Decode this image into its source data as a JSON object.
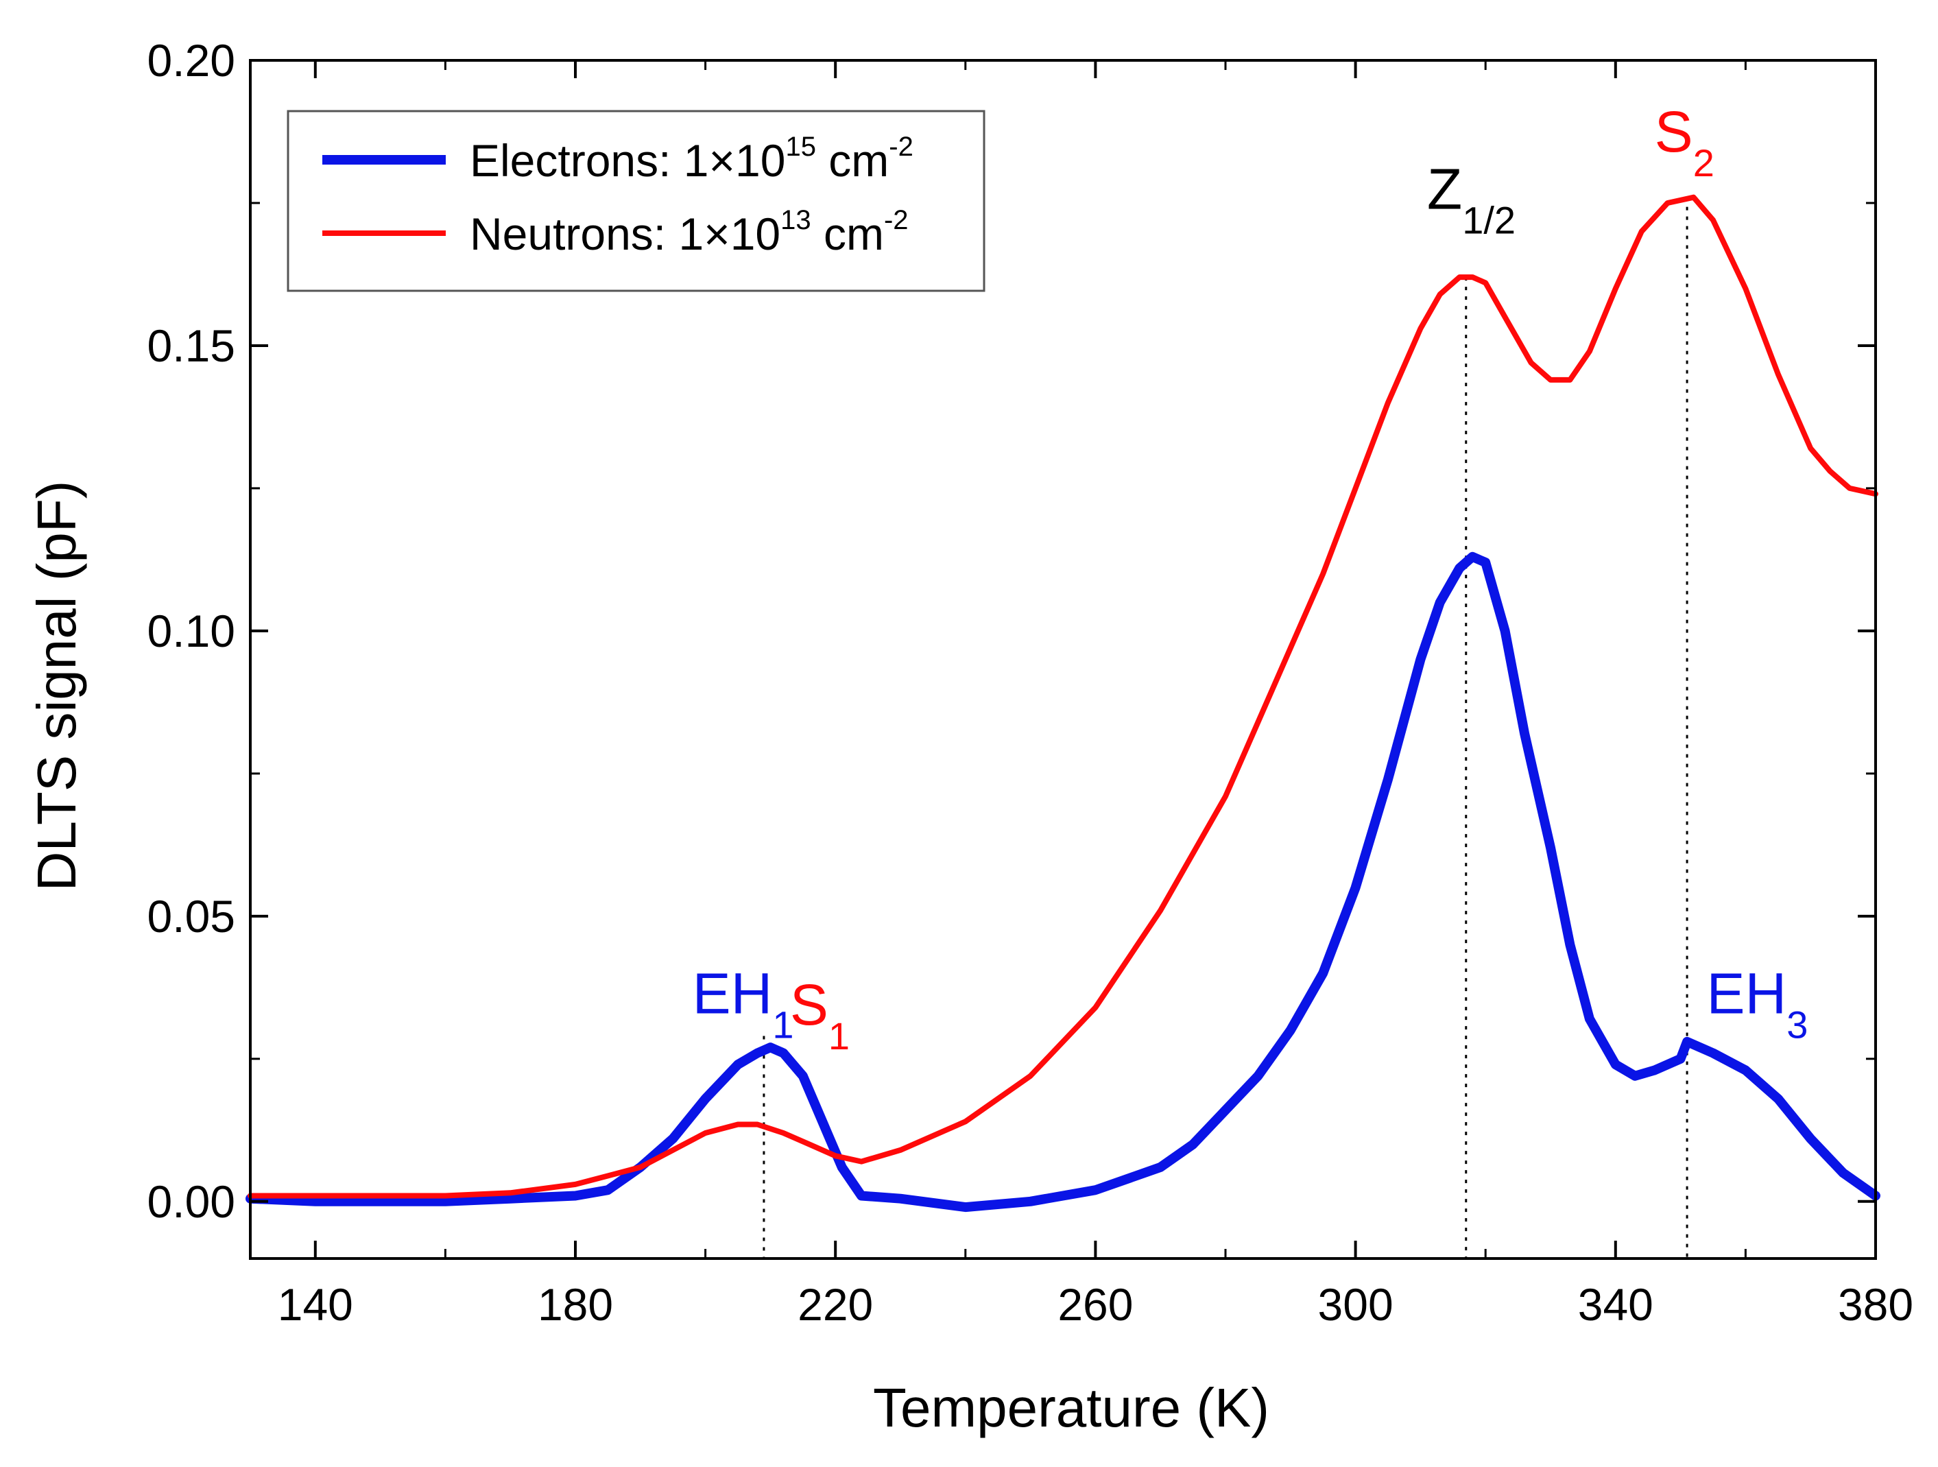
{
  "chart_data": {
    "type": "line",
    "title": "",
    "xlabel": "Temperature (K)",
    "ylabel": "DLTS signal (pF)",
    "xlim": [
      130,
      380
    ],
    "ylim": [
      -0.01,
      0.2
    ],
    "xticks": [
      140,
      180,
      220,
      260,
      300,
      340,
      380
    ],
    "xtick_labels": [
      "140",
      "180",
      "220",
      "260",
      "300",
      "340",
      "380"
    ],
    "yticks": [
      0.0,
      0.05,
      0.1,
      0.15,
      0.2
    ],
    "ytick_labels": [
      "0.00",
      "0.05",
      "0.10",
      "0.15",
      "0.20"
    ],
    "legend_position": "top-left",
    "series": [
      {
        "name": "Electrons",
        "legend_text": "Electrons: 1×10",
        "legend_exp": "15",
        "legend_unit": " cm",
        "legend_unit_exp": "-2",
        "color": "#0a14e6",
        "x": [
          130,
          140,
          150,
          160,
          170,
          180,
          185,
          190,
          195,
          200,
          205,
          208,
          210,
          212,
          215,
          218,
          221,
          224,
          230,
          240,
          250,
          260,
          270,
          275,
          280,
          285,
          290,
          295,
          300,
          305,
          310,
          313,
          316,
          318,
          320,
          323,
          326,
          330,
          333,
          336,
          340,
          343,
          346,
          350,
          351,
          355,
          360,
          365,
          370,
          375,
          380
        ],
        "y": [
          0.0005,
          0.0,
          0.0,
          0.0,
          0.0005,
          0.001,
          0.002,
          0.006,
          0.011,
          0.018,
          0.024,
          0.026,
          0.027,
          0.026,
          0.022,
          0.014,
          0.006,
          0.001,
          0.0005,
          -0.001,
          0.0,
          0.002,
          0.006,
          0.01,
          0.016,
          0.022,
          0.03,
          0.04,
          0.055,
          0.074,
          0.095,
          0.105,
          0.111,
          0.113,
          0.112,
          0.1,
          0.082,
          0.062,
          0.045,
          0.032,
          0.024,
          0.022,
          0.023,
          0.025,
          0.028,
          0.026,
          0.023,
          0.018,
          0.011,
          0.005,
          0.001
        ]
      },
      {
        "name": "Neutrons",
        "legend_text": "Neutrons: 1×10",
        "legend_exp": "13",
        "legend_unit": " cm",
        "legend_unit_exp": "-2",
        "color": "#ff0a0a",
        "x": [
          130,
          140,
          150,
          160,
          170,
          180,
          190,
          195,
          200,
          205,
          208,
          212,
          216,
          220,
          224,
          230,
          240,
          250,
          260,
          270,
          280,
          290,
          295,
          300,
          305,
          310,
          313,
          316,
          318,
          320,
          323,
          327,
          330,
          333,
          336,
          340,
          344,
          348,
          352,
          355,
          360,
          365,
          370,
          373,
          376,
          380
        ],
        "y": [
          0.001,
          0.001,
          0.001,
          0.001,
          0.0015,
          0.003,
          0.006,
          0.009,
          0.012,
          0.0135,
          0.0135,
          0.012,
          0.01,
          0.008,
          0.007,
          0.009,
          0.014,
          0.022,
          0.034,
          0.051,
          0.071,
          0.097,
          0.11,
          0.125,
          0.14,
          0.153,
          0.159,
          0.162,
          0.162,
          0.161,
          0.155,
          0.147,
          0.144,
          0.144,
          0.149,
          0.16,
          0.17,
          0.175,
          0.176,
          0.172,
          0.16,
          0.145,
          0.132,
          0.128,
          0.125,
          0.124
        ]
      }
    ],
    "annotations": [
      {
        "label": "EH",
        "sub": "1",
        "color": "#0a14e6",
        "x": 198,
        "y": 0.033,
        "line_x": null
      },
      {
        "label": "S",
        "sub": "1",
        "color": "#ff0a0a",
        "x": 213,
        "y": 0.031,
        "line_x": 209
      },
      {
        "label": "Z",
        "sub": "1/2",
        "color": "#000000",
        "x": 311,
        "y": 0.174,
        "line_x": 317
      },
      {
        "label": "S",
        "sub": "2",
        "color": "#ff0a0a",
        "x": 346,
        "y": 0.184,
        "line_x": 351
      },
      {
        "label": "EH",
        "sub": "3",
        "color": "#0a14e6",
        "x": 354,
        "y": 0.033,
        "line_x": null
      }
    ],
    "dotted_guides": [
      209,
      317,
      351
    ]
  }
}
